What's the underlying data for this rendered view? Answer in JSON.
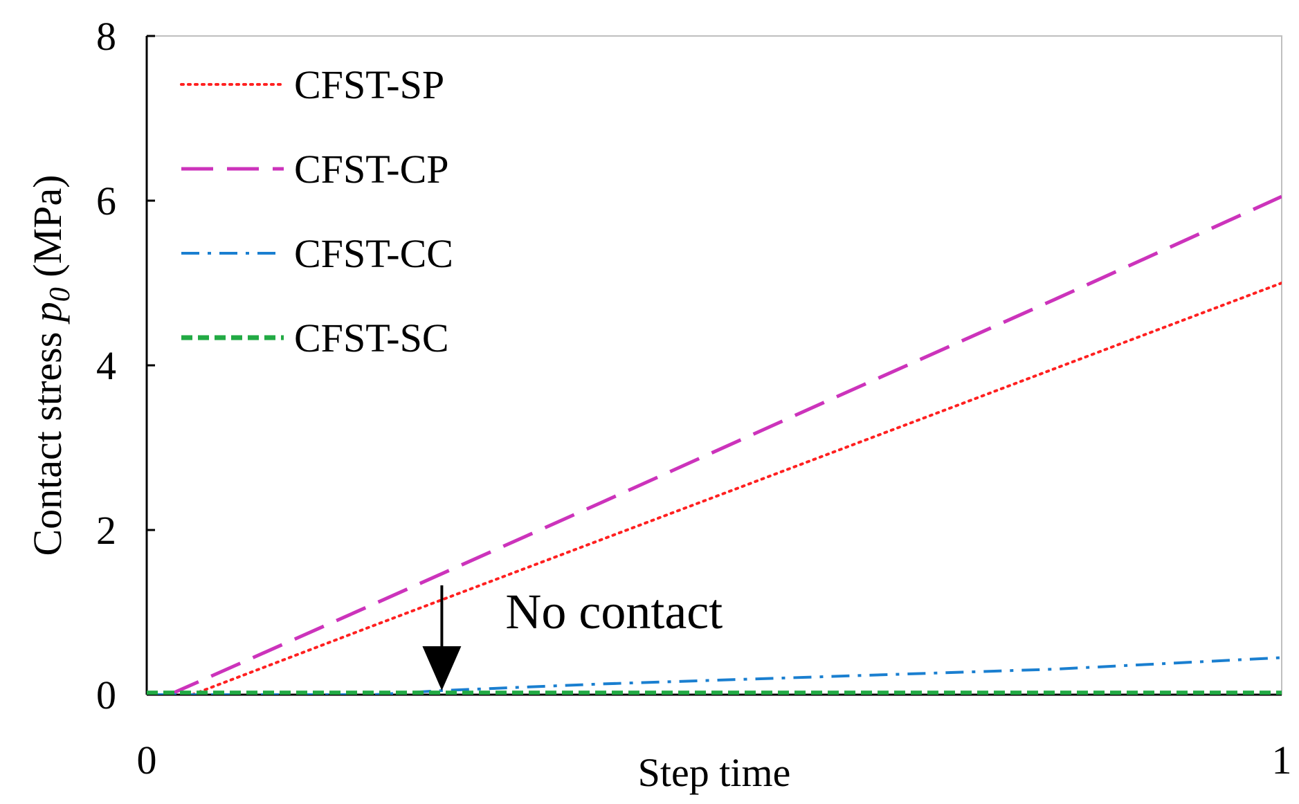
{
  "chart_data": {
    "type": "line",
    "xlabel": "Step time",
    "ylabel_prefix": "Contact stress ",
    "ylabel_symbol": "p",
    "ylabel_subscript": "0",
    "ylabel_suffix": " (MPa)",
    "xlim": [
      0,
      1
    ],
    "ylim": [
      0,
      8
    ],
    "x_ticks": [
      "0",
      "1"
    ],
    "y_ticks": [
      "0",
      "2",
      "4",
      "6",
      "8"
    ],
    "grid": false,
    "legend_position": "top-left",
    "series": [
      {
        "name": "CFST-SP",
        "color": "#ff2020",
        "style": "dotted",
        "x": [
          0.04,
          0.2,
          0.4,
          0.6,
          0.8,
          1.0
        ],
        "y": [
          0.0,
          0.84,
          1.88,
          2.92,
          3.96,
          5.0
        ]
      },
      {
        "name": "CFST-CP",
        "color": "#cc33bb",
        "style": "dashed",
        "x": [
          0.02,
          0.2,
          0.4,
          0.6,
          0.8,
          1.0
        ],
        "y": [
          0.0,
          1.1,
          2.33,
          3.57,
          4.8,
          6.05
        ]
      },
      {
        "name": "CFST-CC",
        "color": "#1a7fd0",
        "style": "dashdot",
        "x": [
          0.0,
          0.2,
          0.26,
          0.4,
          0.6,
          0.8,
          1.0
        ],
        "y": [
          0.0,
          0.0,
          0.05,
          0.13,
          0.22,
          0.31,
          0.45
        ]
      },
      {
        "name": "CFST-SC",
        "color": "#22aa44",
        "style": "dashed-thick",
        "x": [
          0.0,
          1.0
        ],
        "y": [
          0.02,
          0.02
        ]
      }
    ],
    "annotations": [
      {
        "text": "No contact",
        "arrow_x": 0.26,
        "arrow_y": 0.05
      }
    ]
  }
}
